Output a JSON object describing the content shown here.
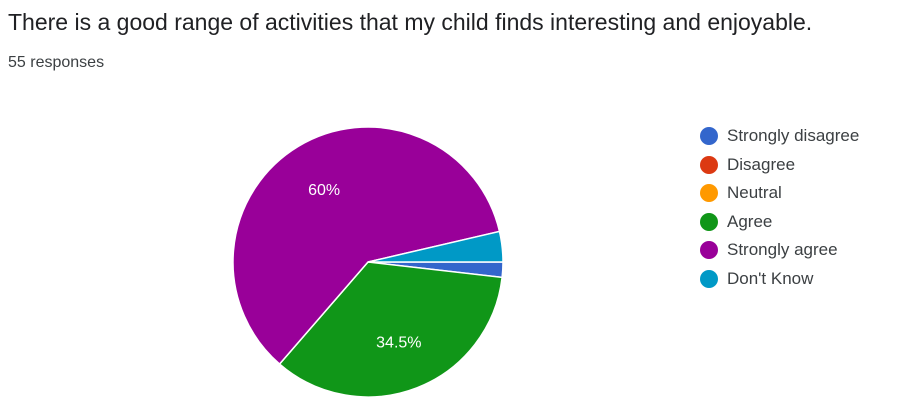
{
  "question": {
    "title": "There is a good range of activities that my child finds interesting and enjoyable.",
    "responses_label": "55 responses"
  },
  "chart_data": {
    "type": "pie",
    "total_responses": 55,
    "slices": [
      {
        "label": "Strongly disagree",
        "count": 1,
        "percent": 1.8,
        "color": "#3366cc",
        "data_label": ""
      },
      {
        "label": "Disagree",
        "count": 0,
        "percent": 0,
        "color": "#dc3912",
        "data_label": ""
      },
      {
        "label": "Neutral",
        "count": 0,
        "percent": 0,
        "color": "#ff9900",
        "data_label": ""
      },
      {
        "label": "Agree",
        "count": 19,
        "percent": 34.5,
        "color": "#109618",
        "data_label": "34.5%"
      },
      {
        "label": "Strongly agree",
        "count": 33,
        "percent": 60,
        "color": "#990099",
        "data_label": "60%"
      },
      {
        "label": "Don't Know",
        "count": 2,
        "percent": 3.6,
        "color": "#0099c6",
        "data_label": ""
      }
    ],
    "legend_position": "right"
  }
}
